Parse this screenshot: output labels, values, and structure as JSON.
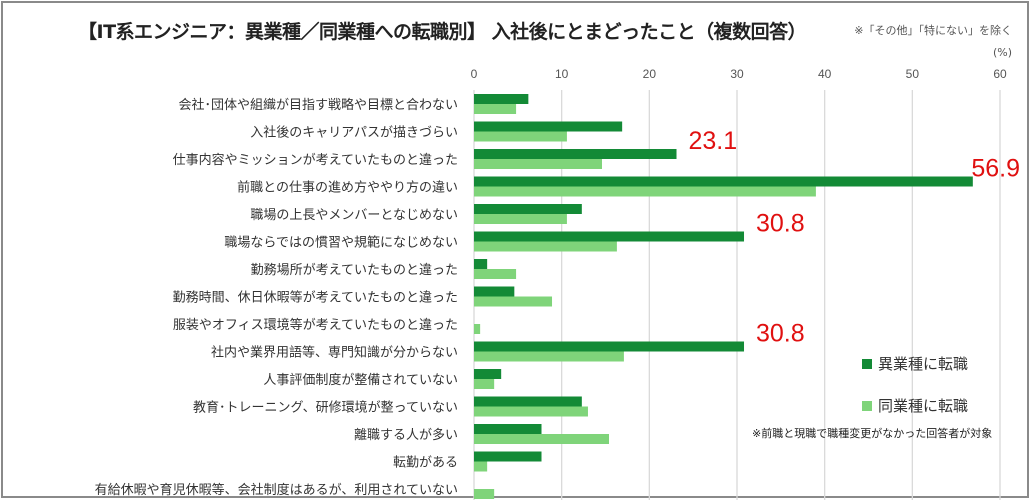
{
  "title": "【IT系エンジニア：異業種／同業種への転職別】 入社後にとまどったこと（複数回答）",
  "note_top": "※「その他」「特にない」を除く",
  "note_bottom": "※前職と現職で職種変更がなかった回答者が対象",
  "colors": {
    "series1": "#138a36",
    "series2": "#7fd47a",
    "annotation": "#e01010",
    "grid": "#d9d9d9"
  },
  "chart_data": {
    "type": "bar",
    "orientation": "horizontal",
    "unit_label": "(%)",
    "xlim": [
      0,
      60
    ],
    "xticks": [
      0,
      10,
      20,
      30,
      40,
      50,
      60
    ],
    "grid": true,
    "legend_position": "bottom-right",
    "categories": [
      "会社･団体や組織が目指す戦略や目標と合わない",
      "入社後のキャリアパスが描きづらい",
      "仕事内容やミッションが考えていたものと違った",
      "前職との仕事の進め方ややり方の違い",
      "職場の上長やメンバーとなじめない",
      "職場ならではの慣習や規範になじめない",
      "勤務場所が考えていたものと違った",
      "勤務時間、休日休暇等が考えていたものと違った",
      "服装やオフィス環境等が考えていたものと違った",
      "社内や業界用語等、専門知識が分からない",
      "人事評価制度が整備されていない",
      "教育･トレーニング、研修環境が整っていない",
      "離職する人が多い",
      "転勤がある",
      "有給休暇や育児休暇等、会社制度はあるが、利用されていない"
    ],
    "series": [
      {
        "name": "異業種に転職",
        "values": [
          6.2,
          16.9,
          23.1,
          56.9,
          12.3,
          30.8,
          1.5,
          4.6,
          0,
          30.8,
          3.1,
          12.3,
          7.7,
          7.7,
          0
        ]
      },
      {
        "name": "同業種に転職",
        "values": [
          4.8,
          10.6,
          14.6,
          39.0,
          10.6,
          16.3,
          4.8,
          8.9,
          0.7,
          17.1,
          2.3,
          13.0,
          15.4,
          1.5,
          2.3
        ]
      }
    ],
    "annotations": [
      {
        "category_index": 2,
        "text": "23.1"
      },
      {
        "category_index": 3,
        "text": "56.9"
      },
      {
        "category_index": 5,
        "text": "30.8"
      },
      {
        "category_index": 9,
        "text": "30.8"
      }
    ]
  }
}
